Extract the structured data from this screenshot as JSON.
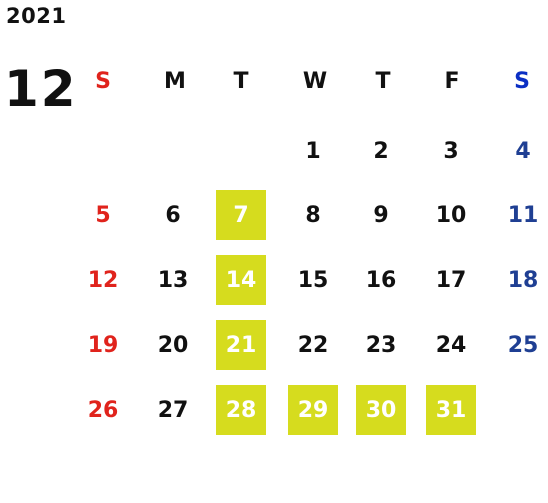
{
  "year": "2021",
  "month": "12",
  "weekdays": [
    "S",
    "M",
    "T",
    "W",
    "T",
    "F",
    "S"
  ],
  "weeks": [
    [
      "",
      "",
      "",
      "1",
      "2",
      "3",
      "4"
    ],
    [
      "5",
      "6",
      "7",
      "8",
      "9",
      "10",
      "11"
    ],
    [
      "12",
      "13",
      "14",
      "15",
      "16",
      "17",
      "18"
    ],
    [
      "19",
      "20",
      "21",
      "22",
      "23",
      "24",
      "25"
    ],
    [
      "26",
      "27",
      "28",
      "29",
      "30",
      "31",
      ""
    ]
  ],
  "highlighted_days": [
    "7",
    "14",
    "21",
    "28",
    "29",
    "30",
    "31"
  ],
  "colors": {
    "sunday": "#e0231c",
    "saturday": "#1f3f93",
    "saturday_header": "#0b2fc4",
    "highlight": "#d6dc1e"
  }
}
